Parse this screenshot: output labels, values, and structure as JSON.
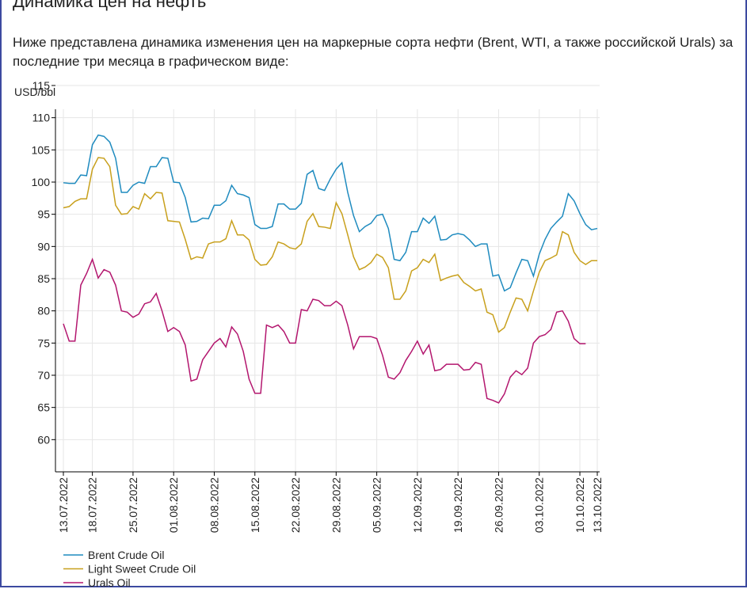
{
  "heading": "Динамика цен на нефть",
  "intro": "Ниже представлена динамика изменения цен на маркерные сорта нефти (Brent, WTI, а также российской Urals) за последние три месяца в графическом виде:",
  "chart_data": {
    "type": "line",
    "ylabel": "USD/bbl",
    "x": [
      "13.07.2022",
      "14.07.2022",
      "15.07.2022",
      "16.07.2022",
      "17.07.2022",
      "18.07.2022",
      "19.07.2022",
      "20.07.2022",
      "21.07.2022",
      "22.07.2022",
      "23.07.2022",
      "24.07.2022",
      "25.07.2022",
      "26.07.2022",
      "27.07.2022",
      "28.07.2022",
      "29.07.2022",
      "30.07.2022",
      "31.07.2022",
      "01.08.2022",
      "02.08.2022",
      "03.08.2022",
      "04.08.2022",
      "05.08.2022",
      "06.08.2022",
      "07.08.2022",
      "08.08.2022",
      "09.08.2022",
      "10.08.2022",
      "11.08.2022",
      "12.08.2022",
      "13.08.2022",
      "14.08.2022",
      "15.08.2022",
      "16.08.2022",
      "17.08.2022",
      "18.08.2022",
      "19.08.2022",
      "20.08.2022",
      "21.08.2022",
      "22.08.2022",
      "23.08.2022",
      "24.08.2022",
      "25.08.2022",
      "26.08.2022",
      "27.08.2022",
      "28.08.2022",
      "29.08.2022",
      "30.08.2022",
      "31.08.2022",
      "01.09.2022",
      "02.09.2022",
      "03.09.2022",
      "04.09.2022",
      "05.09.2022",
      "06.09.2022",
      "07.09.2022",
      "08.09.2022",
      "09.09.2022",
      "10.09.2022",
      "11.09.2022",
      "12.09.2022",
      "13.09.2022",
      "14.09.2022",
      "15.09.2022",
      "16.09.2022",
      "17.09.2022",
      "18.09.2022",
      "19.09.2022",
      "20.09.2022",
      "21.09.2022",
      "22.09.2022",
      "23.09.2022",
      "24.09.2022",
      "25.09.2022",
      "26.09.2022",
      "27.09.2022",
      "28.09.2022",
      "29.09.2022",
      "30.09.2022",
      "01.10.2022",
      "02.10.2022",
      "03.10.2022",
      "04.10.2022",
      "05.10.2022",
      "06.10.2022",
      "07.10.2022",
      "08.10.2022",
      "09.10.2022",
      "10.10.2022",
      "11.10.2022",
      "12.10.2022",
      "13.10.2022"
    ],
    "xlim": [
      "13.07.2022",
      "13.10.2022"
    ],
    "xticks": [
      "13.07.2022",
      "18.07.2022",
      "25.07.2022",
      "01.08.2022",
      "08.08.2022",
      "15.08.2022",
      "22.08.2022",
      "29.08.2022",
      "05.09.2022",
      "12.09.2022",
      "19.09.2022",
      "26.09.2022",
      "03.10.2022",
      "10.10.2022",
      "13.10.2022"
    ],
    "ylim": [
      55,
      115
    ],
    "yticks": [
      60,
      65,
      70,
      75,
      80,
      85,
      90,
      95,
      100,
      105,
      110,
      115
    ],
    "grid": true,
    "series": [
      {
        "name": "Brent Crude Oil",
        "color": "#1f8bbf",
        "values": [
          99.9,
          99.8,
          99.8,
          101.1,
          101.0,
          105.8,
          107.3,
          107.1,
          106.2,
          103.7,
          98.4,
          98.4,
          99.5,
          100.0,
          99.8,
          102.4,
          102.4,
          103.8,
          103.7,
          100.0,
          99.9,
          97.6,
          93.8,
          93.9,
          94.4,
          94.3,
          96.4,
          96.4,
          97.1,
          99.5,
          98.2,
          98.0,
          97.6,
          93.4,
          92.8,
          92.8,
          93.1,
          96.6,
          96.6,
          95.8,
          95.8,
          96.7,
          101.2,
          101.8,
          99.0,
          98.7,
          100.5,
          102.0,
          103.0,
          98.4,
          94.8,
          92.3,
          93.1,
          93.6,
          94.8,
          95.0,
          92.8,
          88.0,
          87.8,
          89.1,
          92.3,
          92.3,
          94.4,
          93.6,
          94.7,
          91.0,
          91.1,
          91.8,
          92.0,
          91.8,
          91.0,
          90.0,
          90.4,
          90.4,
          85.4,
          85.6,
          83.1,
          83.6,
          85.9,
          88.0,
          87.8,
          85.4,
          88.8,
          91.1,
          92.8,
          93.8,
          94.7,
          98.2,
          97.1,
          95.1,
          93.4,
          92.6,
          92.8
        ]
      },
      {
        "name": "Light Sweet Crude Oil",
        "color": "#c8a01c",
        "values": [
          96.0,
          96.2,
          97.0,
          97.4,
          97.4,
          102.0,
          103.8,
          103.7,
          102.4,
          96.4,
          95.0,
          95.1,
          96.2,
          95.8,
          98.2,
          97.4,
          98.4,
          98.3,
          94.0,
          93.9,
          93.8,
          91.1,
          88.0,
          88.4,
          88.2,
          90.4,
          90.7,
          90.7,
          91.2,
          94.0,
          91.8,
          91.8,
          91.0,
          88.0,
          87.1,
          87.2,
          88.4,
          90.7,
          90.4,
          89.8,
          89.6,
          90.4,
          93.9,
          95.1,
          93.1,
          93.0,
          92.8,
          96.8,
          95.1,
          91.8,
          88.4,
          86.4,
          86.8,
          87.5,
          88.8,
          88.3,
          86.7,
          81.8,
          81.8,
          83.1,
          86.2,
          86.7,
          88.0,
          87.5,
          88.8,
          84.7,
          85.1,
          85.4,
          85.6,
          84.4,
          83.8,
          83.1,
          83.4,
          79.8,
          79.4,
          76.7,
          77.4,
          79.8,
          82.0,
          81.8,
          80.0,
          83.1,
          86.0,
          87.8,
          88.2,
          88.7,
          92.3,
          91.8,
          89.1,
          87.8,
          87.2,
          87.8,
          87.8
        ]
      },
      {
        "name": "Urals Oil",
        "color": "#b3166e",
        "values": [
          78.0,
          75.3,
          75.3,
          84.0,
          85.8,
          88.0,
          85.1,
          86.4,
          86.0,
          84.0,
          80.0,
          79.8,
          79.0,
          79.5,
          81.1,
          81.4,
          82.7,
          80.0,
          76.8,
          77.4,
          76.8,
          74.7,
          69.1,
          69.4,
          72.4,
          73.7,
          75.0,
          75.7,
          74.4,
          77.5,
          76.4,
          73.7,
          69.4,
          67.2,
          67.2,
          77.8,
          77.4,
          77.8,
          76.8,
          75.0,
          75.0,
          80.2,
          80.0,
          81.8,
          81.6,
          80.8,
          80.8,
          81.5,
          80.8,
          77.8,
          74.1,
          76.0,
          76.0,
          76.0,
          75.7,
          73.1,
          69.7,
          69.4,
          70.4,
          72.3,
          73.7,
          75.3,
          73.3,
          74.7,
          70.7,
          70.9,
          71.7,
          71.7,
          71.7,
          70.8,
          70.9,
          72.0,
          71.7,
          66.4,
          66.1,
          65.7,
          67.1,
          69.7,
          70.7,
          70.1,
          71.1,
          75.0,
          76.0,
          76.3,
          77.1,
          79.8,
          80.0,
          78.4,
          75.7,
          74.9,
          74.9,
          null,
          null
        ]
      }
    ]
  }
}
